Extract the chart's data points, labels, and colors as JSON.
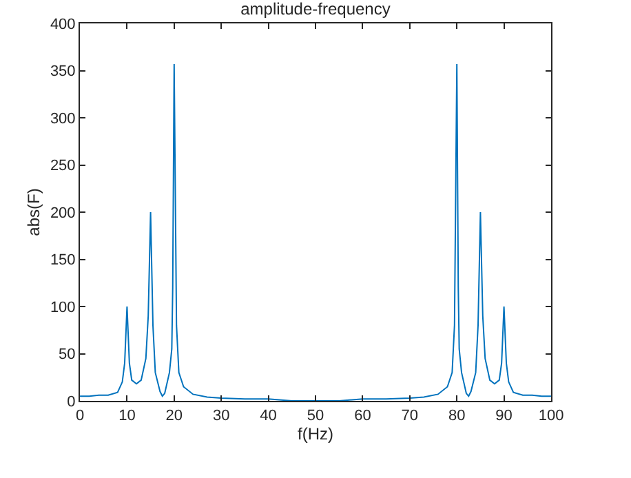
{
  "chart_data": {
    "type": "line",
    "title": "amplitude-frequency",
    "xlabel": "f(Hz)",
    "ylabel": "abs(F)",
    "xlim": [
      0,
      100
    ],
    "xticks": [
      0,
      10,
      20,
      30,
      40,
      50,
      60,
      70,
      80,
      90,
      100
    ],
    "ylim": [
      0,
      400
    ],
    "yticks": [
      0,
      50,
      100,
      150,
      200,
      250,
      300,
      350,
      400
    ],
    "series": [
      {
        "color": "#0072bd",
        "x": [
          0,
          2,
          4,
          6,
          8,
          9,
          9.5,
          10,
          10.5,
          11,
          12,
          13,
          14,
          14.5,
          15,
          15.5,
          16,
          17,
          17.5,
          18,
          19,
          19.5,
          19.7,
          20,
          20.5,
          21,
          22,
          24,
          27,
          30,
          35,
          40,
          45,
          50,
          55,
          60,
          65,
          70,
          73,
          76,
          78,
          79,
          79.5,
          80,
          80.3,
          80.5,
          81,
          82,
          82.5,
          83,
          84,
          84.5,
          85,
          85.5,
          86,
          87,
          88,
          89,
          89.5,
          90,
          90.5,
          91,
          92,
          94,
          96,
          98,
          100
        ],
        "values": [
          5,
          5,
          6,
          6,
          9,
          20,
          40,
          100,
          40,
          22,
          18,
          22,
          45,
          90,
          200,
          80,
          30,
          10,
          5,
          8,
          30,
          55,
          120,
          357,
          80,
          30,
          15,
          7,
          4,
          3,
          2,
          2,
          0,
          0,
          0,
          2,
          2,
          3,
          4,
          7,
          15,
          30,
          80,
          357,
          120,
          55,
          30,
          8,
          5,
          10,
          30,
          80,
          200,
          90,
          45,
          22,
          18,
          22,
          40,
          100,
          40,
          20,
          9,
          6,
          6,
          5,
          5
        ]
      }
    ]
  }
}
